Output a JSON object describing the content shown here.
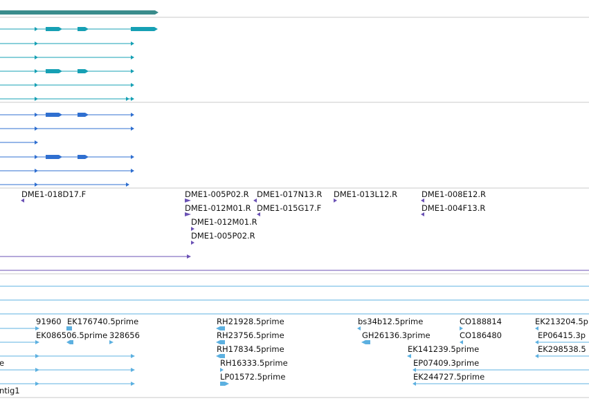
{
  "colors": {
    "top_track": "#3a8c8c",
    "teal": "#16a0b4",
    "blue": "#2f6fd0",
    "purple": "#6b52b5",
    "light_blue": "#5cb0e0",
    "divider": "#c8c8c8"
  },
  "bac_end_labels": [
    "DME1-018D17.F",
    "DME1-005P02.R",
    "DME1-017N13.R",
    "DME1-013L12.R",
    "DME1-008E12.R",
    "DME1-012M01.R",
    "DME1-015G17.F",
    "DME1-004F13.R",
    "DME1-012M01.R",
    "DME1-005P02.R"
  ],
  "est_labels": [
    "91960",
    "EK176740.5prime",
    "RH21928.5prime",
    "bs34b12.5prime",
    "CO188814",
    "EK213204.5p",
    "EK086506.5prime",
    "328656",
    "RH23756.5prime",
    "GH26136.3prime",
    "CO186480",
    "EP06415.3p",
    "RH17834.5prime",
    "EK141239.5prime",
    "EK298538.5",
    "e",
    "RH16333.5prime",
    "EP07409.3prime",
    "LP01572.5prime",
    "EK244727.5prime",
    "ntig1"
  ]
}
